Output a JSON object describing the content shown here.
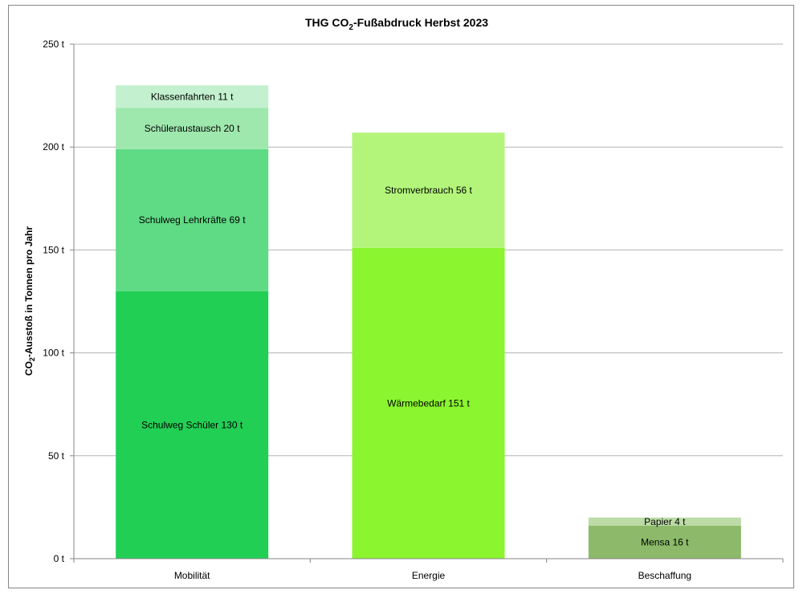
{
  "chart_data": {
    "type": "bar",
    "stacked": true,
    "title_parts": [
      "THG CO",
      "2",
      "-Fußabdruck Herbst 2023"
    ],
    "ylabel_parts": [
      "CO",
      "2",
      "-Ausstoß in Tonnen pro Jahr"
    ],
    "xlabel": "",
    "ylim": [
      0,
      250
    ],
    "yticks": [
      0,
      50,
      100,
      150,
      200,
      250
    ],
    "ytick_labels": [
      "0 t",
      "50 t",
      "100 t",
      "150 t",
      "200 t",
      "250 t"
    ],
    "grid": true,
    "categories": [
      "Mobilität",
      "Energie",
      "Beschaffung"
    ],
    "stacks": [
      {
        "category": "Mobilität",
        "segments": [
          {
            "label": "Schulweg Schüler 130 t",
            "value": 130,
            "color": "#22cf55"
          },
          {
            "label": "Schulweg Lehrkräfte 69 t",
            "value": 69,
            "color": "#5fda85"
          },
          {
            "label": "Schüleraustausch 20 t",
            "value": 20,
            "color": "#9ee8ae"
          },
          {
            "label": "Klassenfahrten 11 t",
            "value": 11,
            "color": "#c3f1cf"
          }
        ]
      },
      {
        "category": "Energie",
        "segments": [
          {
            "label": "Wärmebedarf 151 t",
            "value": 151,
            "color": "#8bf52f"
          },
          {
            "label": "Stromverbrauch 56 t",
            "value": 56,
            "color": "#b3f57a"
          }
        ]
      },
      {
        "category": "Beschaffung",
        "segments": [
          {
            "label": "Mensa 16 t",
            "value": 16,
            "color": "#8cba6a"
          },
          {
            "label": "Papier 4 t",
            "value": 4,
            "color": "#bcdba6"
          }
        ]
      }
    ]
  }
}
